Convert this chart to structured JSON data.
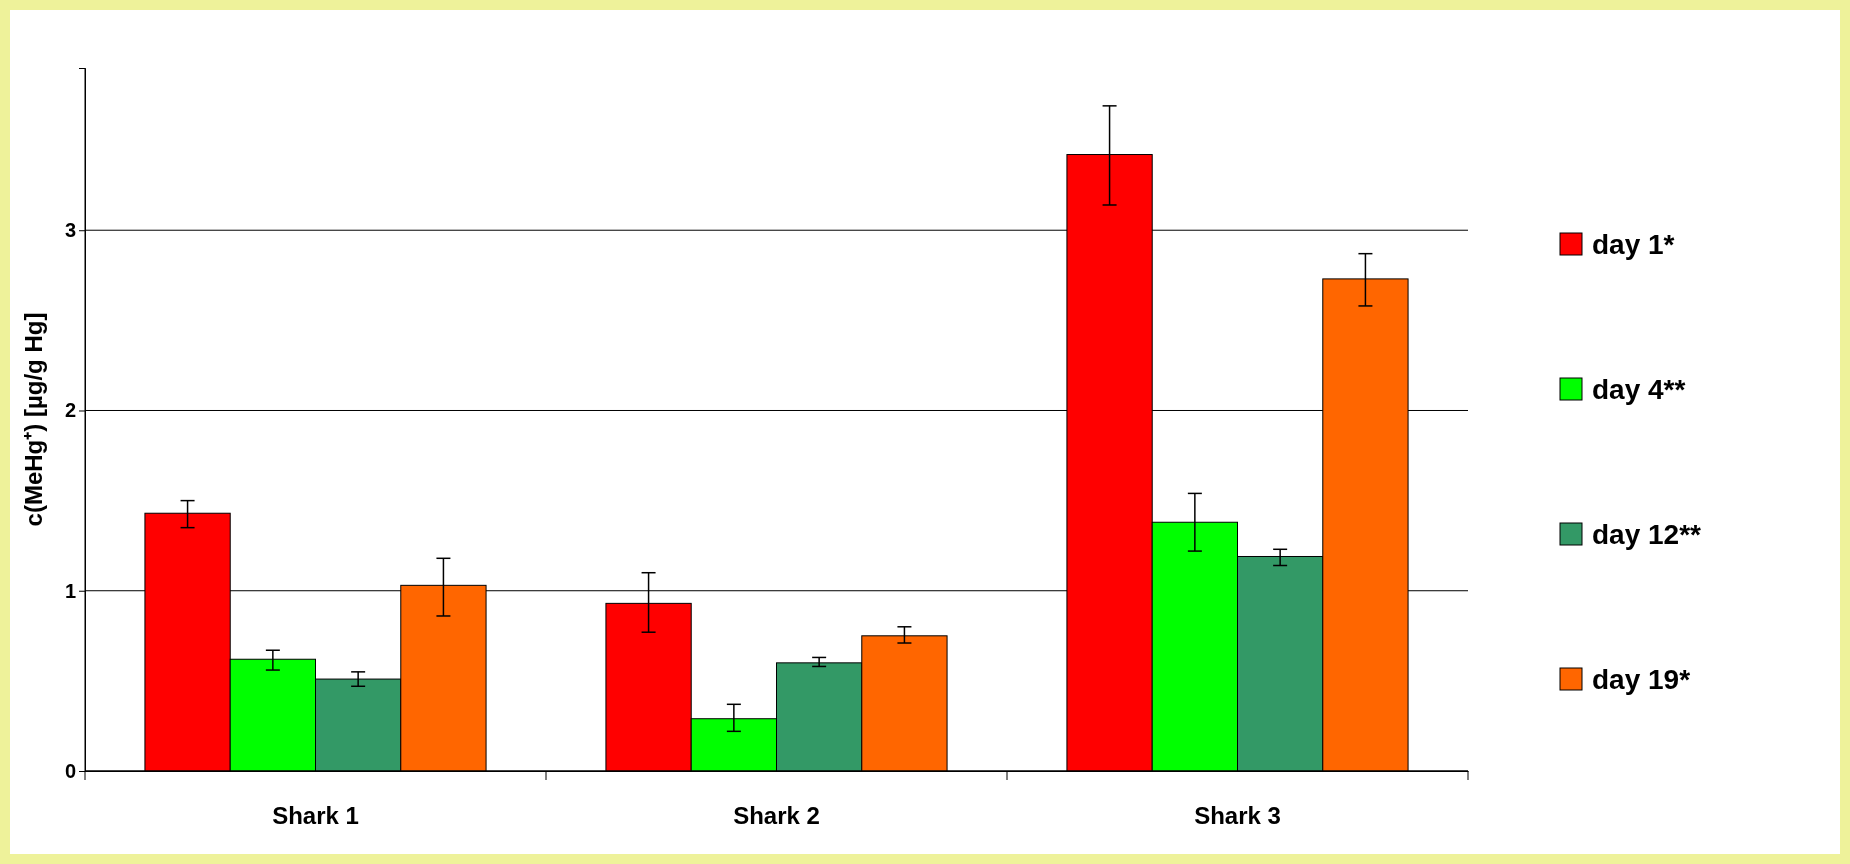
{
  "chart_data": {
    "type": "bar",
    "ylabel": "c(MeHg⁺) [µg/g Hg]",
    "categories": [
      "Shark 1",
      "Shark 2",
      "Shark 3"
    ],
    "series": [
      {
        "name": "day 1*",
        "color": "#ff0000",
        "values": [
          1.43,
          0.93,
          3.42
        ],
        "errors": [
          [
            1.35,
            1.5
          ],
          [
            0.77,
            1.1
          ],
          [
            3.14,
            3.69
          ]
        ]
      },
      {
        "name": "day 4**",
        "color": "#00ff00",
        "values": [
          0.62,
          0.29,
          1.38
        ],
        "errors": [
          [
            0.56,
            0.67
          ],
          [
            0.22,
            0.37
          ],
          [
            1.22,
            1.54
          ]
        ]
      },
      {
        "name": "day 12**",
        "color": "#339966",
        "values": [
          0.51,
          0.6,
          1.19
        ],
        "errors": [
          [
            0.47,
            0.55
          ],
          [
            0.58,
            0.63
          ],
          [
            1.14,
            1.23
          ]
        ]
      },
      {
        "name": "day 19*",
        "color": "#ff6600",
        "values": [
          1.03,
          0.75,
          2.73
        ],
        "errors": [
          [
            0.86,
            1.18
          ],
          [
            0.71,
            0.8
          ],
          [
            2.58,
            2.87
          ]
        ]
      }
    ],
    "ylim": [
      0,
      3.9
    ],
    "yticks": [
      0,
      1,
      2,
      3
    ],
    "grid": "y",
    "legend": "right"
  }
}
